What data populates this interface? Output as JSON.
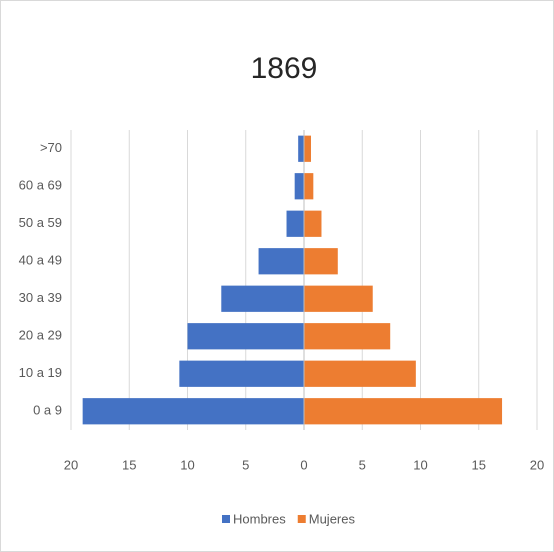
{
  "chart_data": {
    "type": "pyramid",
    "title": "1869",
    "categories": [
      "0 a 9",
      "10 a 19",
      "20 a 29",
      "30 a 39",
      "40 a 49",
      "50 a 59",
      "60 a 69",
      ">70"
    ],
    "series": [
      {
        "name": "Hombres",
        "color": "#4472c4",
        "values": [
          -19.0,
          -10.7,
          -10.0,
          -7.1,
          -3.9,
          -1.5,
          -0.8,
          -0.5
        ]
      },
      {
        "name": "Mujeres",
        "color": "#ed7d31",
        "values": [
          17.0,
          9.6,
          7.4,
          5.9,
          2.9,
          1.5,
          0.8,
          0.6
        ]
      }
    ],
    "xlim": [
      -20,
      20
    ],
    "xticks": [
      {
        "value": -20,
        "label": "20"
      },
      {
        "value": -15,
        "label": "15"
      },
      {
        "value": -10,
        "label": "10"
      },
      {
        "value": -5,
        "label": "5"
      },
      0,
      5,
      10,
      15,
      20
    ],
    "grid": true,
    "legend": "bottom"
  }
}
